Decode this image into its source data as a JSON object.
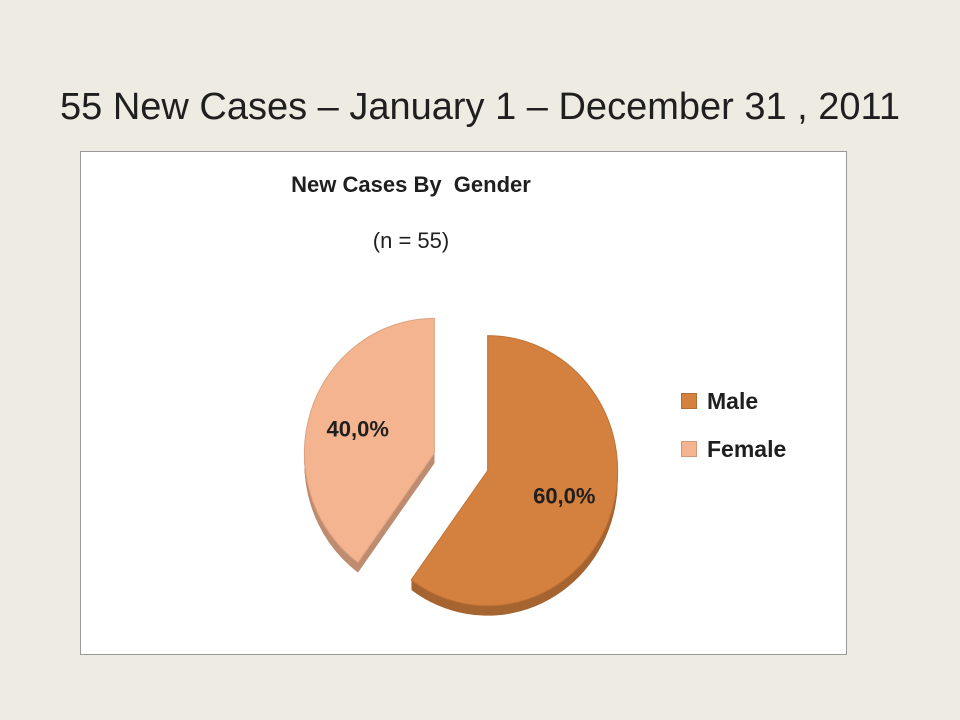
{
  "slide": {
    "title": "55 New Cases – January 1 – December 31 , 2011"
  },
  "chart_data": {
    "type": "pie",
    "title": "New Cases By  Gender",
    "subtitle": "(n = 55)",
    "categories": [
      "Male",
      "Female"
    ],
    "values": [
      60.0,
      40.0
    ],
    "labels": [
      "60,0%",
      "40,0%"
    ],
    "colors": [
      "#D4803E",
      "#F4B48F"
    ],
    "exploded": true,
    "style": "3d",
    "legend_position": "right"
  }
}
